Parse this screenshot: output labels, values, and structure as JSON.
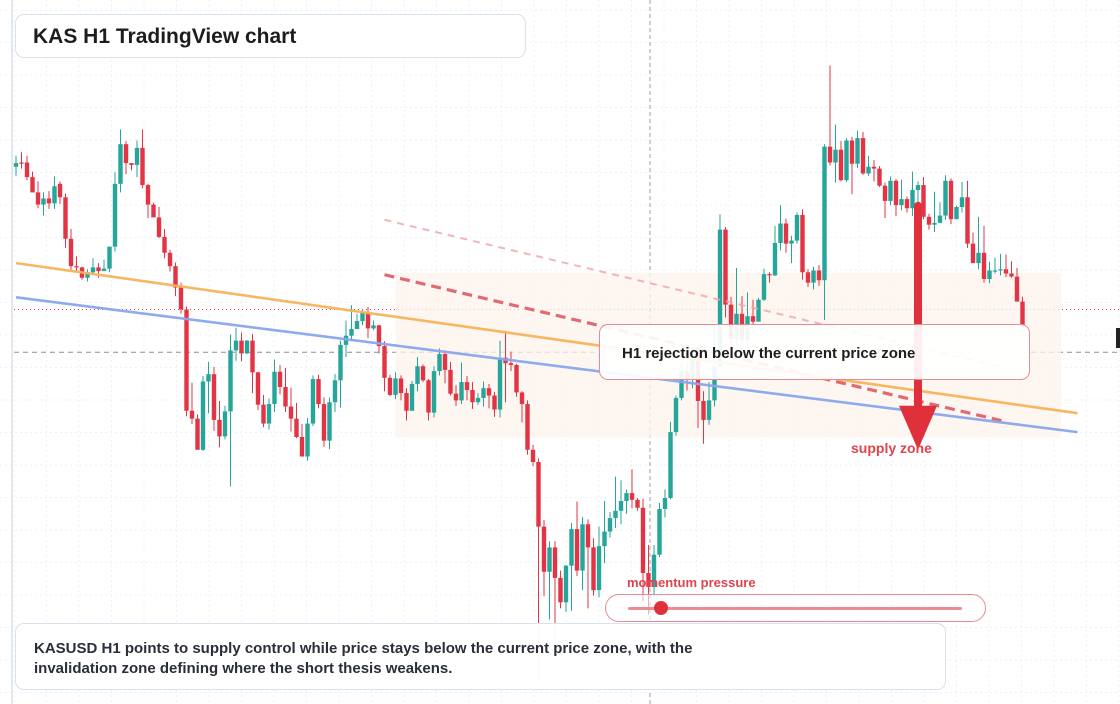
{
  "title": "KAS H1 TradingView chart",
  "callout": "H1 rejection below the current price zone",
  "supply_label": "supply zone",
  "momentum_label": "momentum pressure",
  "summary": "KASUSD H1 points to supply control while price stays below the current price zone, with the invalidation zone defining where the short thesis weakens.",
  "momentum_level": 0.1,
  "colors": {
    "bull": "#26a69a",
    "bear": "#e23445",
    "accent": "#e0303c",
    "resistance": "#f7b35a",
    "support": "#8aa6ee",
    "zone": "#fdf3ec"
  },
  "chart_data": {
    "type": "candlestick",
    "timeframe": "H1",
    "symbol": "KASUSD",
    "ylim": [
      0,
      100
    ],
    "current_price": 65,
    "reference_price": 58,
    "candles": [
      [
        88.4,
        89.0,
        90.2,
        86.9
      ],
      [
        89.1,
        89.0,
        90.8,
        88.1
      ],
      [
        89.1,
        86.7,
        90.2,
        86.2
      ],
      [
        86.7,
        84.2,
        87.6,
        84.2
      ],
      [
        84.2,
        82.2,
        86.0,
        81.6
      ],
      [
        82.2,
        83.2,
        84.2,
        80.4
      ],
      [
        83.2,
        82.4,
        84.4,
        81.5
      ],
      [
        82.4,
        85.2,
        86.8,
        81.5
      ],
      [
        85.6,
        83.4,
        86.0,
        82.3
      ],
      [
        83.4,
        76.6,
        84.0,
        75.1
      ],
      [
        76.6,
        72.1,
        78.2,
        71.4
      ],
      [
        72.1,
        71.9,
        73.7,
        71.3
      ],
      [
        71.9,
        70.2,
        72.0,
        69.9
      ],
      [
        70.2,
        71.1,
        71.6,
        69.6
      ],
      [
        71.1,
        71.9,
        73.4,
        70.6
      ],
      [
        71.9,
        71.3,
        72.6,
        70.2
      ],
      [
        71.3,
        71.7,
        73.2,
        71.4
      ],
      [
        71.7,
        75.3,
        75.3,
        71.1
      ],
      [
        75.3,
        85.6,
        87.5,
        74.5
      ],
      [
        85.6,
        92.1,
        94.5,
        84.2
      ],
      [
        92.1,
        89.0,
        92.6,
        87.2
      ],
      [
        89.0,
        88.7,
        89.0,
        87.8
      ],
      [
        88.7,
        91.5,
        92.7,
        86.7
      ],
      [
        91.5,
        85.4,
        94.5,
        84.9
      ],
      [
        85.4,
        82.2,
        85.6,
        80.0
      ],
      [
        82.2,
        80.1,
        82.5,
        80.3
      ],
      [
        80.1,
        76.9,
        81.8,
        76.7
      ],
      [
        76.9,
        74.3,
        78.2,
        73.4
      ],
      [
        74.3,
        72.1,
        74.8,
        71.2
      ],
      [
        72.1,
        68.6,
        72.7,
        67.2
      ],
      [
        68.6,
        65.0,
        69.4,
        64.3
      ],
      [
        65.0,
        48.4,
        65.5,
        47.5
      ],
      [
        48.4,
        47.1,
        53.0,
        46.2
      ],
      [
        47.1,
        42.0,
        47.8,
        42.1
      ],
      [
        42.0,
        53.2,
        54.1,
        41.8
      ],
      [
        53.2,
        54.4,
        56.4,
        48.0
      ],
      [
        54.4,
        46.9,
        55.6,
        45.1
      ],
      [
        46.9,
        44.2,
        50.0,
        42.4
      ],
      [
        44.2,
        48.3,
        49.2,
        43.7
      ],
      [
        48.3,
        58.3,
        60.9,
        36.0
      ],
      [
        58.3,
        59.9,
        62.0,
        56.6
      ],
      [
        59.9,
        57.8,
        61.2,
        56.5
      ],
      [
        57.8,
        59.9,
        60.0,
        57.7
      ],
      [
        59.9,
        54.7,
        61.0,
        51.3
      ],
      [
        54.7,
        49.4,
        54.8,
        48.5
      ],
      [
        49.4,
        46.3,
        51.0,
        45.7
      ],
      [
        46.3,
        49.5,
        50.4,
        45.3
      ],
      [
        49.5,
        54.8,
        56.8,
        48.2
      ],
      [
        54.8,
        52.3,
        55.9,
        51.1
      ],
      [
        52.3,
        49.1,
        55.4,
        48.2
      ],
      [
        49.1,
        47.1,
        52.2,
        45.0
      ],
      [
        47.1,
        44.1,
        49.7,
        43.9
      ],
      [
        44.1,
        40.9,
        46.2,
        41.0
      ],
      [
        40.9,
        46.3,
        47.2,
        40.2
      ],
      [
        46.3,
        53.6,
        54.2,
        45.9
      ],
      [
        53.6,
        49.5,
        54.3,
        48.8
      ],
      [
        49.5,
        43.5,
        50.6,
        42.5
      ],
      [
        43.5,
        49.8,
        50.6,
        42.1
      ],
      [
        49.8,
        53.4,
        54.4,
        48.2
      ],
      [
        53.4,
        59.2,
        59.9,
        48.9
      ],
      [
        59.2,
        60.7,
        63.2,
        57.2
      ],
      [
        60.7,
        61.8,
        65.7,
        59.8
      ],
      [
        61.8,
        63.1,
        64.3,
        61.8
      ],
      [
        63.1,
        64.5,
        65.1,
        62.4
      ],
      [
        64.5,
        61.9,
        65.4,
        60.3
      ],
      [
        61.9,
        62.4,
        63.2,
        61.6
      ],
      [
        62.4,
        59.0,
        62.5,
        57.8
      ],
      [
        59.0,
        53.8,
        59.8,
        51.6
      ],
      [
        53.8,
        51.0,
        54.3,
        50.8
      ],
      [
        51.0,
        53.7,
        54.7,
        50.3
      ],
      [
        53.7,
        51.3,
        54.2,
        50.1
      ],
      [
        51.3,
        48.4,
        52.1,
        46.8
      ],
      [
        48.4,
        52.8,
        53.3,
        48.4
      ],
      [
        52.8,
        55.7,
        57.2,
        51.6
      ],
      [
        55.7,
        53.4,
        56.0,
        53.1
      ],
      [
        53.4,
        48.1,
        53.6,
        46.8
      ],
      [
        48.1,
        54.9,
        55.7,
        47.3
      ],
      [
        54.9,
        57.7,
        58.6,
        54.2
      ],
      [
        57.7,
        55.1,
        58.3,
        52.9
      ],
      [
        55.1,
        51.2,
        56.4,
        50.9
      ],
      [
        51.2,
        50.1,
        52.6,
        49.2
      ],
      [
        50.1,
        53.1,
        56.3,
        49.5
      ],
      [
        53.1,
        51.8,
        54.1,
        50.1
      ],
      [
        51.8,
        49.8,
        53.1,
        48.7
      ],
      [
        49.8,
        50.5,
        51.3,
        49.4
      ],
      [
        50.5,
        52.1,
        53.2,
        49.1
      ],
      [
        52.1,
        50.9,
        52.8,
        48.8
      ],
      [
        50.9,
        48.6,
        51.5,
        47.4
      ],
      [
        48.6,
        57.1,
        59.9,
        47.3
      ],
      [
        57.1,
        56.2,
        61.5,
        49.8
      ],
      [
        56.2,
        55.9,
        58.1,
        54.9
      ],
      [
        55.9,
        51.4,
        56.1,
        50.7
      ],
      [
        51.4,
        49.5,
        51.6,
        46.5
      ],
      [
        49.5,
        42.0,
        50.1,
        41.2
      ],
      [
        42.0,
        40.0,
        42.8,
        39.3
      ],
      [
        40.0,
        29.4,
        40.6,
        4.0
      ],
      [
        29.4,
        22.0,
        30.5,
        18.0
      ],
      [
        22.0,
        26.0,
        27.0,
        14.2
      ],
      [
        26.0,
        21.0,
        27.0,
        8.5
      ],
      [
        21.0,
        17.0,
        22.2,
        16.0
      ],
      [
        17.0,
        23.0,
        23.1,
        15.4
      ],
      [
        23.0,
        29.0,
        30.0,
        15.6
      ],
      [
        29.0,
        22.2,
        33.5,
        21.3
      ],
      [
        22.2,
        29.8,
        31.0,
        19.0
      ],
      [
        29.8,
        26.0,
        30.6,
        16.0
      ],
      [
        26.0,
        19.0,
        27.5,
        18.1
      ],
      [
        19.0,
        26.2,
        29.4,
        17.8
      ],
      [
        26.2,
        28.6,
        33.6,
        23.4
      ],
      [
        28.6,
        30.8,
        31.8,
        27.6
      ],
      [
        30.8,
        32.0,
        37.6,
        29.2
      ],
      [
        32.0,
        33.6,
        37.0,
        29.8
      ],
      [
        33.6,
        34.9,
        35.5,
        31.5
      ],
      [
        34.9,
        33.8,
        38.8,
        32.4
      ],
      [
        33.8,
        32.5,
        34.1,
        32.0
      ],
      [
        32.5,
        21.8,
        34.0,
        17.2
      ],
      [
        21.8,
        19.5,
        26.4,
        15.0
      ],
      [
        19.5,
        24.8,
        26.4,
        18.1
      ],
      [
        24.8,
        32.3,
        33.3,
        24.4
      ],
      [
        32.3,
        34.1,
        35.5,
        30.9
      ],
      [
        34.1,
        44.9,
        46.6,
        33.9
      ],
      [
        44.9,
        50.5,
        50.9,
        44.3
      ],
      [
        50.5,
        54.9,
        56.3,
        50.1
      ],
      [
        54.9,
        53.6,
        56.3,
        51.7
      ],
      [
        53.6,
        58.1,
        58.8,
        52.1
      ],
      [
        58.1,
        50.0,
        59.0,
        45.6
      ],
      [
        50.0,
        46.9,
        51.6,
        43.0
      ],
      [
        46.9,
        50.1,
        53.1,
        46.1
      ],
      [
        50.1,
        55.7,
        62.3,
        49.1
      ],
      [
        55.7,
        78.1,
        80.6,
        55.0
      ],
      [
        78.1,
        65.8,
        78.5,
        63.7
      ],
      [
        65.8,
        60.2,
        67.1,
        57.8
      ],
      [
        60.2,
        64.3,
        71.8,
        59.3
      ],
      [
        64.3,
        60.0,
        67.2,
        59.2
      ],
      [
        60.0,
        63.9,
        67.8,
        59.2
      ],
      [
        63.9,
        63.0,
        66.6,
        62.0
      ],
      [
        63.0,
        66.6,
        66.9,
        65.2
      ],
      [
        66.6,
        70.8,
        71.7,
        66.4
      ],
      [
        70.8,
        70.6,
        71.1,
        69.4
      ],
      [
        70.6,
        75.9,
        78.7,
        70.5
      ],
      [
        75.9,
        79.1,
        82.1,
        74.7
      ],
      [
        79.1,
        75.8,
        79.9,
        74.3
      ],
      [
        75.8,
        76.3,
        77.1,
        72.6
      ],
      [
        76.3,
        80.5,
        80.9,
        75.8
      ],
      [
        80.5,
        71.1,
        81.4,
        69.9
      ],
      [
        71.1,
        69.4,
        71.6,
        68.7
      ],
      [
        69.4,
        71.4,
        72.0,
        68.3
      ],
      [
        71.4,
        69.8,
        72.3,
        68.9
      ],
      [
        69.8,
        91.7,
        92.1,
        63.3
      ],
      [
        91.7,
        89.1,
        105.0,
        88.6
      ],
      [
        89.1,
        91.2,
        95.3,
        85.8
      ],
      [
        91.2,
        86.2,
        92.6,
        86.0
      ],
      [
        86.2,
        92.7,
        93.1,
        85.9
      ],
      [
        92.7,
        88.9,
        93.3,
        83.9
      ],
      [
        88.9,
        93.1,
        94.3,
        88.2
      ],
      [
        93.1,
        87.3,
        94.1,
        87.1
      ],
      [
        87.3,
        88.4,
        90.2,
        86.9
      ],
      [
        88.4,
        88.1,
        89.5,
        86.0
      ],
      [
        88.1,
        85.3,
        88.5,
        85.1
      ],
      [
        85.3,
        82.8,
        85.8,
        80.0
      ],
      [
        82.8,
        86.1,
        86.8,
        82.1
      ],
      [
        86.1,
        82.1,
        86.4,
        80.3
      ],
      [
        82.1,
        83.1,
        86.3,
        81.3
      ],
      [
        83.1,
        81.6,
        83.5,
        80.9
      ],
      [
        81.6,
        84.6,
        87.6,
        80.3
      ],
      [
        84.6,
        85.4,
        86.0,
        81.6
      ],
      [
        85.4,
        80.2,
        86.7,
        79.8
      ],
      [
        80.2,
        78.9,
        80.7,
        78.1
      ],
      [
        78.9,
        79.2,
        84.3,
        77.7
      ],
      [
        79.2,
        80.4,
        82.6,
        79.2
      ],
      [
        80.4,
        86.1,
        87.0,
        79.7
      ],
      [
        86.1,
        79.8,
        86.5,
        79.0
      ],
      [
        79.8,
        81.8,
        82.0,
        79.8
      ],
      [
        81.8,
        83.4,
        85.9,
        80.9
      ],
      [
        83.4,
        75.8,
        86.1,
        75.1
      ],
      [
        75.8,
        72.6,
        77.6,
        73.0
      ],
      [
        72.6,
        74.3,
        80.2,
        71.6
      ],
      [
        74.3,
        70.0,
        78.7,
        69.4
      ],
      [
        70.0,
        71.4,
        72.8,
        69.3
      ],
      [
        71.4,
        71.4,
        73.5,
        70.9
      ],
      [
        71.4,
        71.6,
        74.1,
        70.6
      ],
      [
        71.6,
        70.9,
        74.0,
        70.3
      ],
      [
        70.9,
        70.4,
        72.9,
        70.2
      ],
      [
        70.4,
        66.3,
        71.8,
        66.3
      ],
      [
        66.3,
        62.3,
        67.1,
        61.7
      ]
    ],
    "overlays": {
      "resistance_line": [
        [
          0,
          72.6
        ],
        [
          193,
          48.0
        ]
      ],
      "support_line": [
        [
          0,
          67.0
        ],
        [
          193,
          44.9
        ]
      ],
      "dashed_trend": [
        [
          67,
          70.7
        ],
        [
          180,
          46.6
        ]
      ],
      "faint_trend": [
        [
          67,
          79.7
        ],
        [
          180,
          55.4
        ]
      ],
      "rejection_arrow": [
        [
          164,
          82.0
        ],
        [
          164,
          42.0
        ]
      ]
    },
    "zone": [
      69,
      190,
      71.0,
      44.0
    ],
    "grid": true
  }
}
